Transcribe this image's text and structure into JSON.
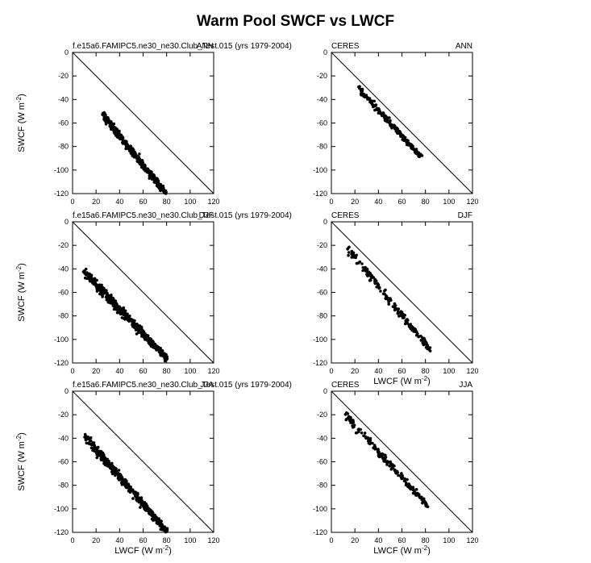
{
  "figure": {
    "title": "Warm Pool SWCF vs LWCF"
  },
  "chart_data": [
    {
      "type": "scatter",
      "left_label": "f.e15a6.FAMIPC5.ne30_ne30.Club_Test.015 (yrs 1979-2004)",
      "right_label": "ANN",
      "xlabel": "",
      "ylabel": "SWCF (W m-2)",
      "xlim": [
        0,
        120
      ],
      "ylim": [
        -120,
        0
      ],
      "xticks": [
        "0",
        "20",
        "40",
        "60",
        "80",
        "100",
        "120"
      ],
      "yticks": [
        "0",
        "-20",
        "-40",
        "-60",
        "-80",
        "-100",
        "-120"
      ],
      "reference_line": "1:1 (SWCF = -LWCF)",
      "cluster": {
        "count": 420,
        "x0": 25,
        "x1": 80,
        "y0": -50,
        "y1": -120,
        "spread": 7,
        "n": 0
      },
      "seed": 11
    },
    {
      "type": "scatter",
      "left_label": "CERES",
      "right_label": "ANN",
      "xlabel": "",
      "ylabel": "",
      "xlim": [
        0,
        120
      ],
      "ylim": [
        -120,
        0
      ],
      "xticks": [
        "0",
        "20",
        "40",
        "60",
        "80",
        "100",
        "120"
      ],
      "yticks": [
        "0",
        "-20",
        "-40",
        "-60",
        "-80",
        "-100",
        "-120"
      ],
      "reference_line": "1:1 (SWCF = -LWCF)",
      "cluster": {
        "count": 200,
        "x0": 22,
        "x1": 76,
        "y0": -28,
        "y1": -88,
        "spread": 5,
        "n": 1
      },
      "seed": 23
    },
    {
      "type": "scatter",
      "left_label": "f.e15a6.FAMIPC5.ne30_ne30.Club_Test.015 (yrs 1979-2004)",
      "right_label": "DJF",
      "xlabel": "",
      "ylabel": "SWCF (W m-2)",
      "xlim": [
        0,
        120
      ],
      "ylim": [
        -120,
        0
      ],
      "xticks": [
        "0",
        "20",
        "40",
        "60",
        "80",
        "100",
        "120"
      ],
      "yticks": [
        "0",
        "-20",
        "-40",
        "-60",
        "-80",
        "-100",
        "-120"
      ],
      "reference_line": "1:1 (SWCF = -LWCF)",
      "cluster": {
        "count": 520,
        "x0": 10,
        "x1": 80,
        "y0": -40,
        "y1": -115,
        "spread": 9,
        "n": 2
      },
      "seed": 37
    },
    {
      "type": "scatter",
      "left_label": "CERES",
      "right_label": "DJF",
      "xlabel": "LWCF (W m-2)",
      "ylabel": "",
      "xlim": [
        0,
        120
      ],
      "ylim": [
        -120,
        0
      ],
      "xticks": [
        "0",
        "20",
        "40",
        "60",
        "80",
        "100",
        "120"
      ],
      "yticks": [
        "0",
        "-20",
        "-40",
        "-60",
        "-80",
        "-100",
        "-120"
      ],
      "reference_line": "1:1 (SWCF = -LWCF)",
      "cluster": {
        "count": 170,
        "x0": 12,
        "x1": 84,
        "y0": -18,
        "y1": -108,
        "spread": 8,
        "n": 3
      },
      "seed": 41
    },
    {
      "type": "scatter",
      "left_label": "f.e15a6.FAMIPC5.ne30_ne30.Club_Test.015 (yrs 1979-2004)",
      "right_label": "JJA",
      "xlabel": "LWCF (W m-2)",
      "ylabel": "SWCF (W m-2)",
      "xlim": [
        0,
        120
      ],
      "ylim": [
        -120,
        0
      ],
      "xticks": [
        "0",
        "20",
        "40",
        "60",
        "80",
        "100",
        "120"
      ],
      "yticks": [
        "0",
        "-20",
        "-40",
        "-60",
        "-80",
        "-100",
        "-120"
      ],
      "reference_line": "1:1 (SWCF = -LWCF)",
      "cluster": {
        "count": 450,
        "x0": 10,
        "x1": 80,
        "y0": -35,
        "y1": -118,
        "spread": 9,
        "n": 4
      },
      "seed": 53
    },
    {
      "type": "scatter",
      "left_label": "CERES",
      "right_label": "JJA",
      "xlabel": "LWCF (W m-2)",
      "ylabel": "",
      "xlim": [
        0,
        120
      ],
      "ylim": [
        -120,
        0
      ],
      "xticks": [
        "0",
        "20",
        "40",
        "60",
        "80",
        "100",
        "120"
      ],
      "yticks": [
        "0",
        "-20",
        "-40",
        "-60",
        "-80",
        "-100",
        "-120"
      ],
      "reference_line": "1:1 (SWCF = -LWCF)",
      "cluster": {
        "count": 180,
        "x0": 12,
        "x1": 82,
        "y0": -18,
        "y1": -97,
        "spread": 7,
        "n": 5
      },
      "seed": 67
    }
  ]
}
